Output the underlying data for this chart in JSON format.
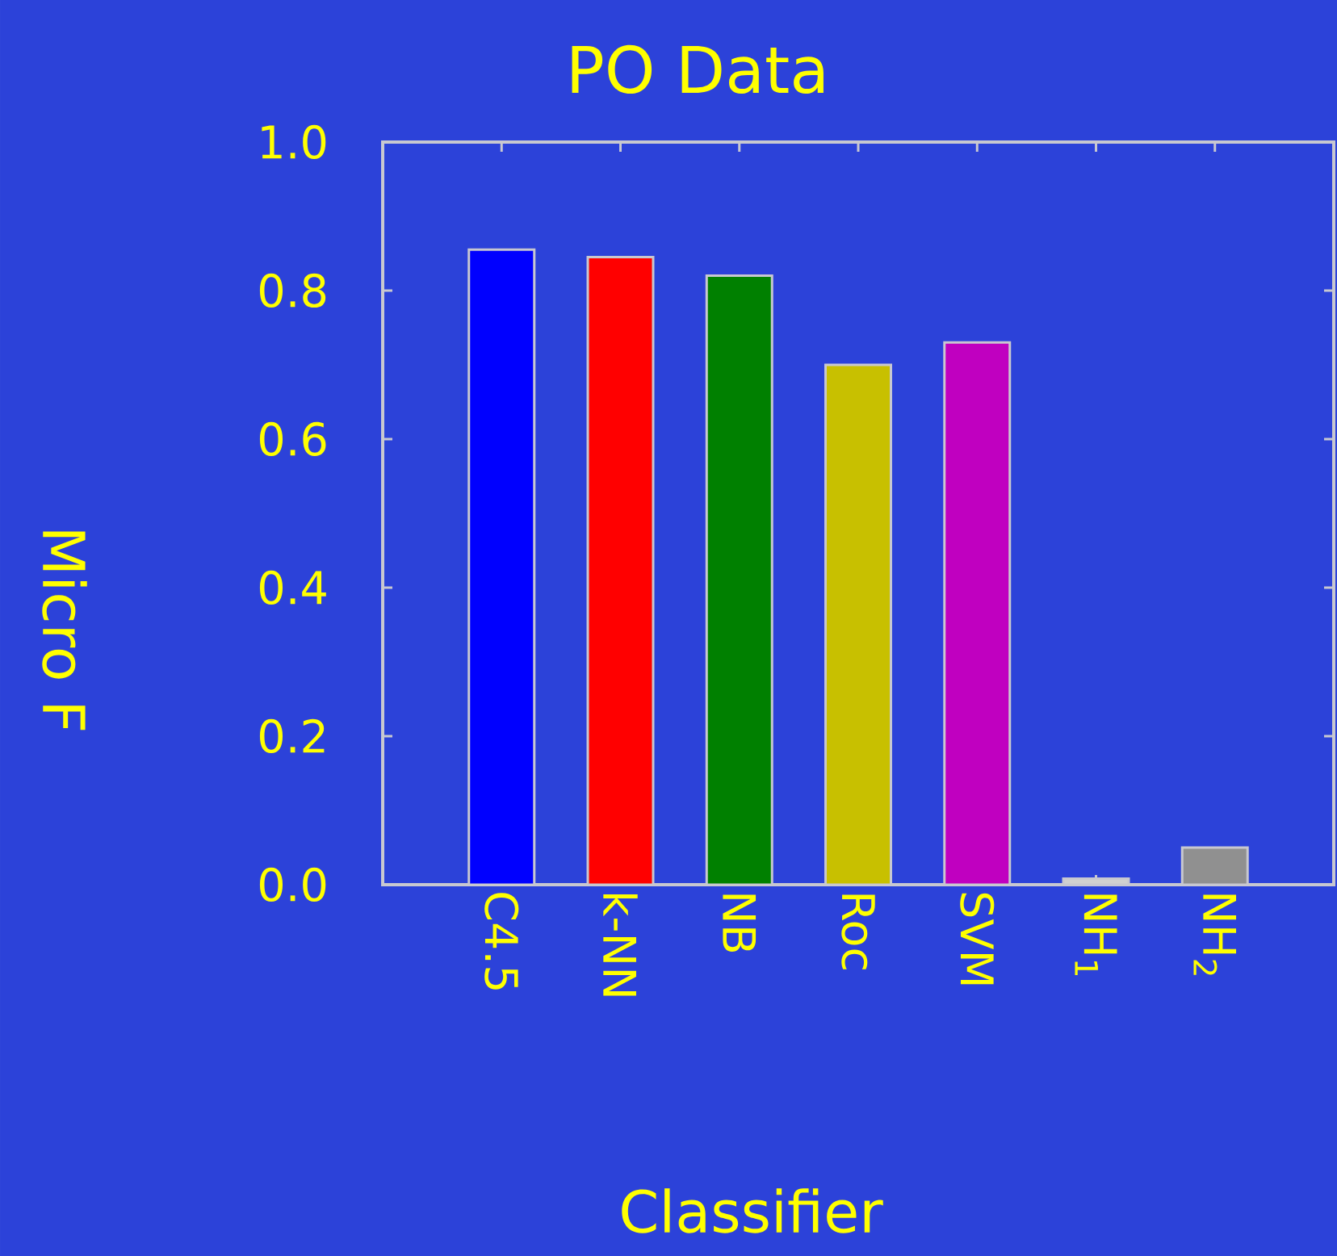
{
  "chart_data": {
    "type": "bar",
    "title": "PO Data",
    "xlabel": "Classifier",
    "ylabel": "Micro F",
    "categories": [
      "C4.5",
      "k-NN",
      "NB",
      "Roc",
      "SVM",
      "NH$_{1}$",
      "NH$_{2}$"
    ],
    "values": [
      0.855,
      0.845,
      0.82,
      0.7,
      0.73,
      0.008,
      0.05
    ],
    "colors": [
      "#0000ff",
      "#ff0000",
      "#008000",
      "#c8c000",
      "#c000c0",
      "#d0d0d0",
      "#909090"
    ],
    "ylim": [
      0,
      1
    ],
    "yticks": [
      {
        "value": 0,
        "label": "0.0"
      },
      0.2,
      0.4,
      0.6,
      0.8,
      {
        "value": 1,
        "label": "1.0"
      }
    ]
  }
}
